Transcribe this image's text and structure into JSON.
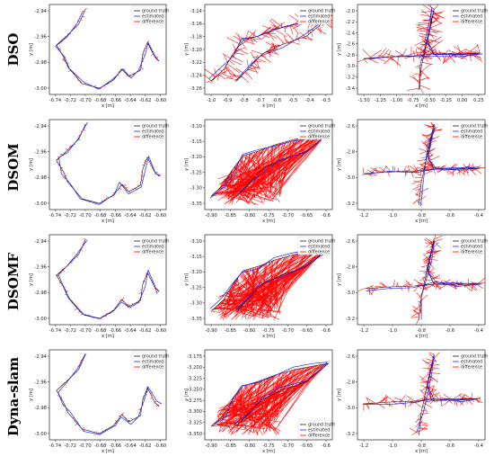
{
  "rows": [
    "DSO",
    "DSOM",
    "DSOMF",
    "Dyna-slam"
  ],
  "colors": {
    "ground_truth": "#1a1a1a",
    "estimated": "#2020ff",
    "difference": "#ff0000"
  },
  "chart_data": [
    {
      "type": "line",
      "row": "DSO",
      "col": 1,
      "xlabel": "x [m]",
      "ylabel": "y [m]",
      "xticks": [
        "-0.74",
        "-0.72",
        "-0.70",
        "-0.68",
        "-0.66",
        "-0.64",
        "-0.62",
        "-0.60"
      ],
      "yticks": [
        "-2.94",
        "-2.96",
        "-2.98",
        "-3.00"
      ],
      "xlim": [
        -0.75,
        -0.595
      ],
      "ylim": [
        -3.015,
        -2.93
      ],
      "legend": {
        "position": "top-right",
        "entries": [
          "ground truth",
          "estimated",
          "difference"
        ]
      },
      "series": []
    },
    {
      "type": "line",
      "row": "DSO",
      "col": 2,
      "xlabel": "x [m]",
      "ylabel": "y [m]",
      "xticks": [
        "-1.0",
        "-0.9",
        "-0.8",
        "-0.7",
        "-0.6",
        "-0.5",
        "-0.4",
        "-0.3"
      ],
      "yticks": [
        "-3.14",
        "-3.16",
        "-3.18",
        "-3.20",
        "-3.22",
        "-3.24",
        "-3.26"
      ],
      "xlim": [
        -1.05,
        -0.28
      ],
      "ylim": [
        -3.265,
        -3.135
      ],
      "legend": {
        "position": "top-right",
        "entries": [
          "ground truth",
          "estimated",
          "difference"
        ]
      },
      "series": []
    },
    {
      "type": "line",
      "row": "DSO",
      "col": 3,
      "xlabel": "x [m]",
      "ylabel": "y [m]",
      "xticks": [
        "-1.50",
        "-1.25",
        "-1.00",
        "-0.75",
        "-0.50",
        "-0.25",
        "0.00",
        "0.25"
      ],
      "yticks": [
        "-2.0",
        "-2.2",
        "-2.4",
        "-2.6",
        "-2.8",
        "-3.0",
        "-3.2",
        "-3.4"
      ],
      "xlim": [
        -1.55,
        0.3
      ],
      "ylim": [
        -3.45,
        -1.97
      ],
      "legend": {
        "position": "top-right",
        "entries": [
          "ground truth",
          "estimated",
          "difference"
        ]
      },
      "series": []
    },
    {
      "type": "line",
      "row": "DSOM",
      "col": 1,
      "xlabel": "x [m]",
      "ylabel": "y [m]",
      "xticks": [
        "-0.74",
        "-0.72",
        "-0.70",
        "-0.68",
        "-0.66",
        "-0.64",
        "-0.62",
        "-0.60"
      ],
      "yticks": [
        "-2.94",
        "-2.96",
        "-2.98",
        "-3.00"
      ],
      "xlim": [
        -0.75,
        -0.595
      ],
      "ylim": [
        -3.015,
        -2.93
      ],
      "legend": {
        "position": "top-right",
        "entries": [
          "ground truth",
          "estimated",
          "difference"
        ]
      },
      "series": []
    },
    {
      "type": "line",
      "row": "DSOM",
      "col": 2,
      "xlabel": "x [m]",
      "ylabel": "y [m]",
      "xticks": [
        "-0.90",
        "-0.85",
        "-0.80",
        "-0.75",
        "-0.70",
        "-0.65",
        "-0.6"
      ],
      "yticks": [
        "-3.10",
        "-3.15",
        "-3.20",
        "-3.25",
        "-3.30",
        "-3.35"
      ],
      "xlim": [
        -0.905,
        -0.6
      ],
      "ylim": [
        -3.36,
        -3.08
      ],
      "legend": {
        "position": "top-right",
        "entries": [
          "ground truth",
          "estimated",
          "difference"
        ]
      },
      "series": []
    },
    {
      "type": "line",
      "row": "DSOM",
      "col": 3,
      "xlabel": "x [m]",
      "ylabel": "y [m]",
      "xticks": [
        "-1.2",
        "-1.0",
        "-0.8",
        "-0.6",
        "-0.4"
      ],
      "yticks": [
        "-2.6",
        "-2.8",
        "-3.0",
        "-3.2"
      ],
      "xlim": [
        -1.3,
        -0.35
      ],
      "ylim": [
        -3.32,
        -2.5
      ],
      "legend": {
        "position": "top-right",
        "entries": [
          "ground truth",
          "estimated",
          "difference"
        ]
      },
      "series": []
    },
    {
      "type": "line",
      "row": "DSOMF",
      "col": 1,
      "xlabel": "x [m]",
      "ylabel": "y [m]",
      "xticks": [
        "-0.74",
        "-0.72",
        "-0.70",
        "-0.68",
        "-0.66",
        "-0.64",
        "-0.62",
        "-0.60"
      ],
      "yticks": [
        "-2.94",
        "-2.96",
        "-2.98",
        "-3.00"
      ],
      "xlim": [
        -0.75,
        -0.595
      ],
      "ylim": [
        -3.015,
        -2.93
      ],
      "legend": {
        "position": "top-right",
        "entries": [
          "ground truth",
          "estimated",
          "difference"
        ]
      },
      "series": []
    },
    {
      "type": "line",
      "row": "DSOMF",
      "col": 2,
      "xlabel": "x [m]",
      "ylabel": "y [m]",
      "xticks": [
        "-0.90",
        "-0.85",
        "-0.80",
        "-0.75",
        "-0.70",
        "-0.65",
        "-0.6"
      ],
      "yticks": [
        "-3.10",
        "-3.15",
        "-3.20",
        "-3.25",
        "-3.30",
        "-3.35"
      ],
      "xlim": [
        -0.905,
        -0.6
      ],
      "ylim": [
        -3.36,
        -3.08
      ],
      "legend": {
        "position": "top-right",
        "entries": [
          "ground truth",
          "estimated",
          "difference"
        ]
      },
      "series": []
    },
    {
      "type": "line",
      "row": "DSOMF",
      "col": 3,
      "xlabel": "x [m]",
      "ylabel": "y [m]",
      "xticks": [
        "-1.2",
        "-1.0",
        "-0.8",
        "-0.6",
        "-0.4"
      ],
      "yticks": [
        "-2.6",
        "-2.8",
        "-3.0",
        "-3.2"
      ],
      "xlim": [
        -1.3,
        -0.35
      ],
      "ylim": [
        -3.32,
        -2.5
      ],
      "legend": {
        "position": "top-right",
        "entries": [
          "ground truth",
          "estimated",
          "difference"
        ]
      },
      "series": []
    },
    {
      "type": "line",
      "row": "Dyna-slam",
      "col": 1,
      "xlabel": "x [m]",
      "ylabel": "y [m]",
      "xticks": [
        "-0.74",
        "-0.72",
        "-0.70",
        "-0.68",
        "-0.66",
        "-0.64",
        "-0.62",
        "-0.60"
      ],
      "yticks": [
        "-2.94",
        "-2.96",
        "-2.98",
        "-3.00"
      ],
      "xlim": [
        -0.75,
        -0.595
      ],
      "ylim": [
        -3.015,
        -2.93
      ],
      "legend": {
        "position": "top-right",
        "entries": [
          "ground truth",
          "estimated",
          "difference"
        ]
      },
      "series": []
    },
    {
      "type": "line",
      "row": "Dyna-slam",
      "col": 2,
      "xlabel": "x [m]",
      "ylabel": "y [m]",
      "xticks": [
        "-0.90",
        "-0.85",
        "-0.80",
        "-0.75",
        "-0.70",
        "-0.65",
        "-0.6"
      ],
      "yticks": [
        "-3.175",
        "-3.200",
        "-3.225",
        "-3.250",
        "-3.275",
        "-3.300",
        "-3.325",
        "-3.350"
      ],
      "xlim": [
        -0.905,
        -0.6
      ],
      "ylim": [
        -3.36,
        -3.165
      ],
      "legend": {
        "position": "bottom-right",
        "entries": [
          "ground truth",
          "estimated",
          "difference"
        ]
      },
      "series": []
    },
    {
      "type": "line",
      "row": "Dyna-slam",
      "col": 3,
      "xlabel": "x [m]",
      "ylabel": "y [m]",
      "xticks": [
        "-1.2",
        "-1.0",
        "-0.8",
        "-0.6",
        "-0.4"
      ],
      "yticks": [
        "-2.6",
        "-2.8",
        "-3.0",
        "-3.2"
      ],
      "xlim": [
        -1.3,
        -0.35
      ],
      "ylim": [
        -3.32,
        -2.5
      ],
      "legend": {
        "position": "top-right",
        "entries": [
          "ground truth",
          "estimated",
          "difference"
        ]
      },
      "series": []
    }
  ]
}
